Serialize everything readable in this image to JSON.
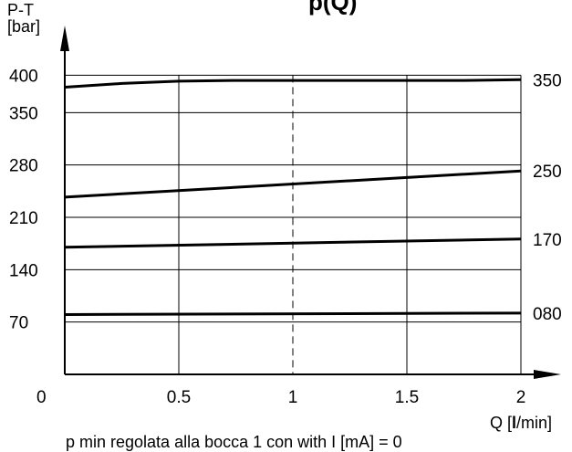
{
  "chart_data": {
    "type": "line",
    "title": "p(Q)",
    "ylabel_line1": "P-T",
    "ylabel_line2": "[bar]",
    "xlabel_prefix": "Q [",
    "xlabel_bold": "l",
    "xlabel_suffix": "/min]",
    "note": "p min regolata alla bocca 1 con with I [mA] = 0",
    "xlim": [
      0,
      2
    ],
    "x_ticks": [
      {
        "value": 0,
        "label": "0"
      },
      {
        "value": 0.5,
        "label": "0.5"
      },
      {
        "value": 1,
        "label": "1"
      },
      {
        "value": 1.5,
        "label": "1.5"
      },
      {
        "value": 2,
        "label": "2"
      }
    ],
    "y_ticks": [
      {
        "value": 70,
        "label": "70"
      },
      {
        "value": 140,
        "label": "140"
      },
      {
        "value": 210,
        "label": "210"
      },
      {
        "value": 280,
        "label": "280"
      },
      {
        "value": 350,
        "label": "350"
      },
      {
        "value": 400,
        "label": "400"
      }
    ],
    "ylim": [
      0,
      420
    ],
    "grid": true,
    "dashed_x": 1,
    "series": [
      {
        "name": "350",
        "x": [
          0,
          0.25,
          0.5,
          0.75,
          1,
          1.25,
          1.5,
          1.75,
          2
        ],
        "y": [
          384,
          389,
          392,
          393,
          393,
          393,
          393,
          393,
          394
        ]
      },
      {
        "name": "250",
        "x": [
          0,
          2
        ],
        "y": [
          237,
          272
        ]
      },
      {
        "name": "170",
        "x": [
          0,
          2
        ],
        "y": [
          170,
          181
        ]
      },
      {
        "name": "080",
        "x": [
          0,
          2
        ],
        "y": [
          80,
          82
        ]
      }
    ]
  }
}
